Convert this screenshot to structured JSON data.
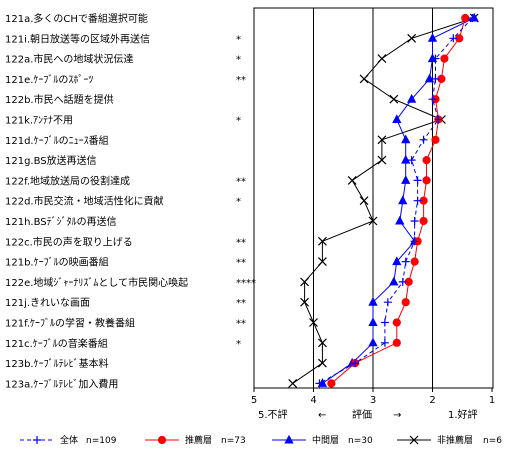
{
  "chart_data": {
    "type": "line",
    "orientation": "horizontal",
    "categories": [
      "121a.多くのCHで番組選択可能",
      "121i.朝日放送等の区域外再送信",
      "122a.市民への地域状況伝達",
      "121e.ｹｰﾌﾞﾙのｽﾎﾟｰﾂ",
      "122b.市民へ話題を提供",
      "121k.ｱﾝﾃﾅ不用",
      "121d.ｹｰﾌﾞﾙのﾆｭｰｽ番組",
      "121g.BS放送再送信",
      "122f.地域放送局の役割達成",
      "122d.市民交流・地域活性化に貢献",
      "121h.BSﾃﾞｼﾞﾀﾙの再送信",
      "122c.市民の声を取り上げる",
      "121b.ｹｰﾌﾞﾙの映画番組",
      "122e.地域ｼﾞｬｰﾅﾘｽﾞﾑとして市民関心喚起",
      "121j.きれいな画面",
      "121f.ｹｰﾌﾞﾙの学習・教養番組",
      "121c.ｹｰﾌﾞﾙの音楽番組",
      "123b.ｹｰﾌﾞﾙﾃﾚﾋﾞ基本料",
      "123a.ｹｰﾌﾞﾙﾃﾚﾋﾞ加入費用"
    ],
    "significance": [
      "",
      "*",
      "*",
      "**",
      "",
      "*",
      "",
      "",
      "**",
      "*",
      "",
      "**",
      "**",
      "****",
      "**",
      "**",
      "*",
      "",
      ""
    ],
    "x_axis": {
      "range": [
        5,
        1
      ],
      "ticks": [
        5,
        4,
        3,
        2,
        1
      ],
      "tick_labels": [
        "5",
        "4",
        "3",
        "2",
        "1"
      ],
      "label_left": "5.不評",
      "label_arrow_left": "←",
      "label_center": "評価",
      "label_arrow_right": "→",
      "label_right": "1.好評",
      "gridlines_at": [
        4,
        3,
        2
      ]
    },
    "series": [
      {
        "name": "全体",
        "n_label": "n=109",
        "color": "#0000ff",
        "dash": true,
        "marker": "plus",
        "values": [
          1.33,
          1.65,
          1.95,
          1.95,
          2.0,
          1.9,
          2.15,
          2.35,
          2.25,
          2.25,
          2.3,
          2.3,
          2.45,
          2.5,
          2.75,
          2.8,
          2.8,
          3.3,
          3.9
        ]
      },
      {
        "name": "推薦層",
        "n_label": "n=73",
        "color": "#ff0000",
        "dash": false,
        "marker": "circle",
        "values": [
          1.45,
          1.55,
          1.8,
          1.85,
          1.95,
          1.9,
          1.95,
          2.1,
          2.1,
          2.15,
          2.15,
          2.25,
          2.3,
          2.4,
          2.45,
          2.6,
          2.6,
          3.3,
          3.7
        ]
      },
      {
        "name": "中間層",
        "n_label": "n=30",
        "color": "#0000ff",
        "dash": false,
        "marker": "triangle",
        "values": [
          1.3,
          2.0,
          2.0,
          2.05,
          2.35,
          2.6,
          2.45,
          2.45,
          2.45,
          2.5,
          2.55,
          2.3,
          2.6,
          2.65,
          3.0,
          3.0,
          3.0,
          3.35,
          3.85
        ]
      },
      {
        "name": "非推薦層",
        "n_label": "n=6",
        "color": "#000000",
        "dash": false,
        "marker": "x",
        "values": [
          1.3,
          2.35,
          2.85,
          3.15,
          2.65,
          1.85,
          2.85,
          2.85,
          3.35,
          3.15,
          3.0,
          3.85,
          3.85,
          4.15,
          4.15,
          4.0,
          3.85,
          3.85,
          4.35
        ]
      }
    ],
    "grid": true,
    "legend_position": "bottom"
  }
}
